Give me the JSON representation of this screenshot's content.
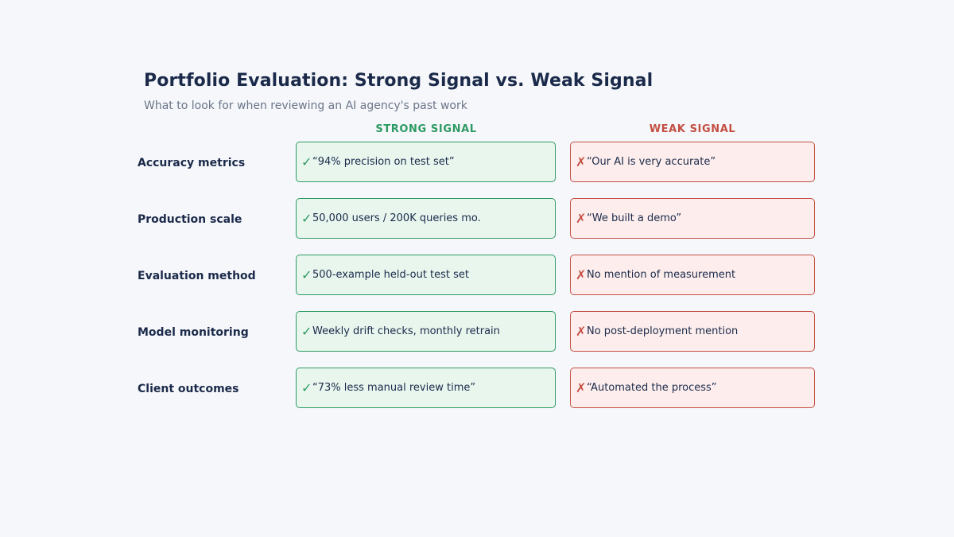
{
  "header": {
    "title": "Portfolio Evaluation: Strong Signal vs. Weak Signal",
    "subtitle": "What to look for when reviewing an AI agency's past work"
  },
  "columns": {
    "strong": "STRONG SIGNAL",
    "weak": "WEAK SIGNAL"
  },
  "icons": {
    "strong_icon": "check-icon",
    "weak_icon": "cross-icon"
  },
  "colors": {
    "strong_accent": "#2e9a63",
    "weak_accent": "#c44f43",
    "title": "#1b2a4a"
  },
  "rows": [
    {
      "label": "Accuracy metrics",
      "strong": "“94% precision on test set”",
      "weak": "“Our AI is very accurate”"
    },
    {
      "label": "Production scale",
      "strong": "50,000 users / 200K queries mo.",
      "weak": "“We built a demo”"
    },
    {
      "label": "Evaluation method",
      "strong": "500-example held-out test set",
      "weak": "No mention of measurement"
    },
    {
      "label": "Model monitoring",
      "strong": "Weekly drift checks, monthly retrain",
      "weak": "No post-deployment mention"
    },
    {
      "label": "Client outcomes",
      "strong": "“73% less manual review time”",
      "weak": "“Automated the process”"
    }
  ]
}
